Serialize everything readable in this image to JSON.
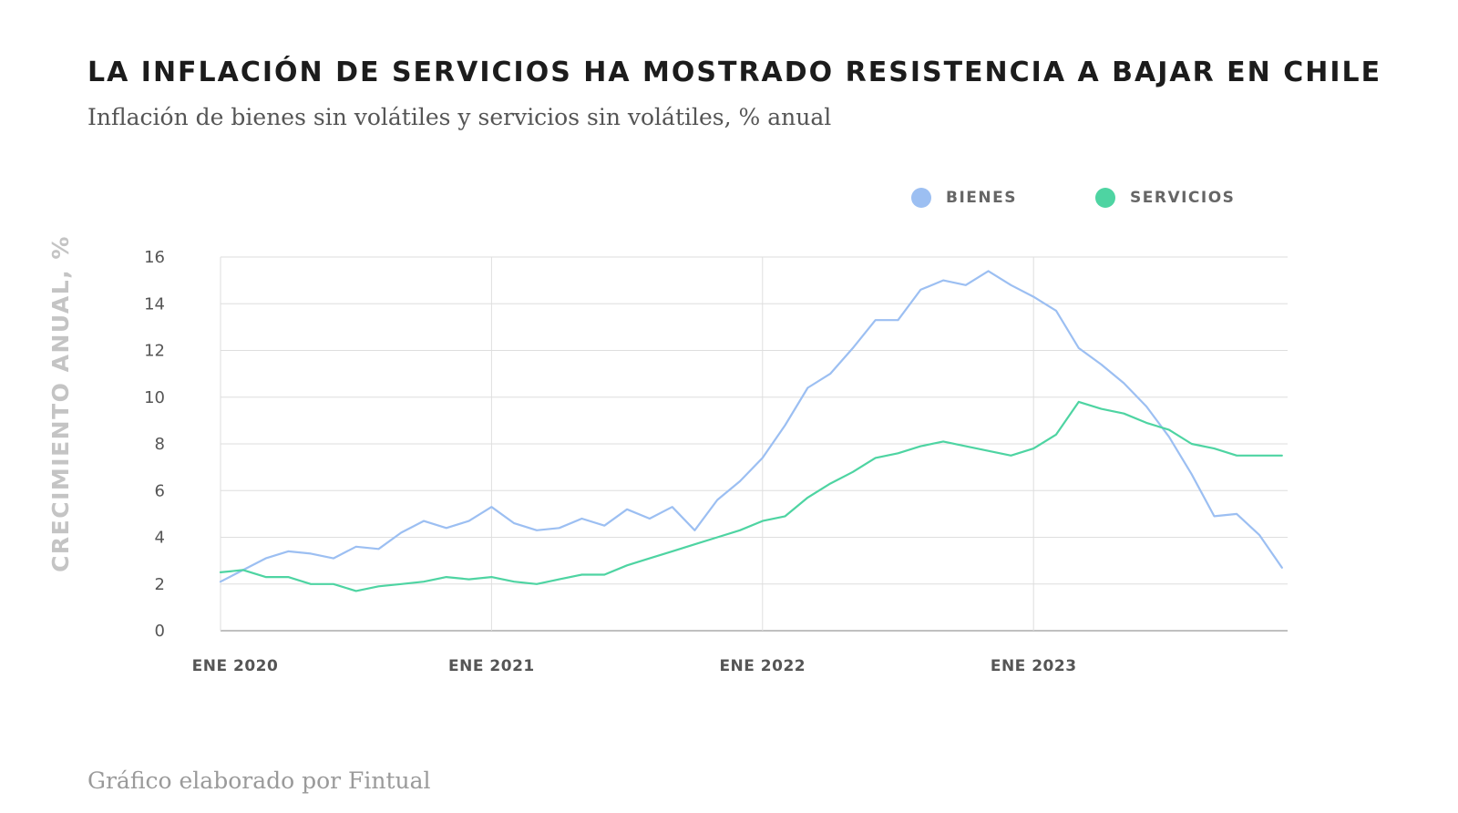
{
  "header": {
    "title": "LA INFLACIÓN DE SERVICIOS HA MOSTRADO RESISTENCIA A BAJAR EN CHILE",
    "subtitle": "Inflación de bienes sin volátiles y servicios sin volátiles, % anual"
  },
  "footer": {
    "credit": "Gráfico elaborado por Fintual"
  },
  "chart_data": {
    "type": "line",
    "ylabel": "CRECIMIENTO ANUAL, %",
    "xlabel": "",
    "ylim": [
      0,
      16
    ],
    "yticks": [
      0,
      2,
      4,
      6,
      8,
      10,
      12,
      14,
      16
    ],
    "xticks": [
      "ENE 2020",
      "ENE 2021",
      "ENE 2022",
      "ENE 2023"
    ],
    "grid": true,
    "legend_position": "top-right",
    "x": [
      "2020-01",
      "2020-02",
      "2020-03",
      "2020-04",
      "2020-05",
      "2020-06",
      "2020-07",
      "2020-08",
      "2020-09",
      "2020-10",
      "2020-11",
      "2020-12",
      "2021-01",
      "2021-02",
      "2021-03",
      "2021-04",
      "2021-05",
      "2021-06",
      "2021-07",
      "2021-08",
      "2021-09",
      "2021-10",
      "2021-11",
      "2021-12",
      "2022-01",
      "2022-02",
      "2022-03",
      "2022-04",
      "2022-05",
      "2022-06",
      "2022-07",
      "2022-08",
      "2022-09",
      "2022-10",
      "2022-11",
      "2022-12",
      "2023-01",
      "2023-02",
      "2023-03",
      "2023-04",
      "2023-05",
      "2023-06",
      "2023-07",
      "2023-08",
      "2023-09",
      "2023-10",
      "2023-11",
      "2023-12"
    ],
    "series": [
      {
        "name": "BIENES",
        "color": "#9cbff2",
        "values": [
          2.1,
          2.6,
          3.1,
          3.4,
          3.3,
          3.1,
          3.6,
          3.5,
          4.2,
          4.7,
          4.4,
          4.7,
          5.3,
          4.6,
          4.3,
          4.4,
          4.8,
          4.5,
          5.2,
          4.8,
          5.3,
          4.3,
          5.6,
          6.4,
          7.4,
          8.8,
          10.4,
          11.0,
          12.1,
          13.3,
          13.3,
          14.6,
          15.0,
          14.8,
          15.4,
          14.8,
          14.3,
          13.7,
          12.1,
          11.4,
          10.6,
          9.6,
          8.3,
          6.7,
          4.9,
          5.0,
          4.1,
          2.7
        ]
      },
      {
        "name": "SERVICIOS",
        "color": "#4ed4a2",
        "values": [
          2.5,
          2.6,
          2.3,
          2.3,
          2.0,
          2.0,
          1.7,
          1.9,
          2.0,
          2.1,
          2.3,
          2.2,
          2.3,
          2.1,
          2.0,
          2.2,
          2.4,
          2.4,
          2.8,
          3.1,
          3.4,
          3.7,
          4.0,
          4.3,
          4.7,
          4.9,
          5.7,
          6.3,
          6.8,
          7.4,
          7.6,
          7.9,
          8.1,
          7.9,
          7.7,
          7.5,
          7.8,
          8.4,
          9.8,
          9.5,
          9.3,
          8.9,
          8.6,
          8.0,
          7.8,
          7.5,
          7.5,
          7.5
        ]
      }
    ]
  }
}
